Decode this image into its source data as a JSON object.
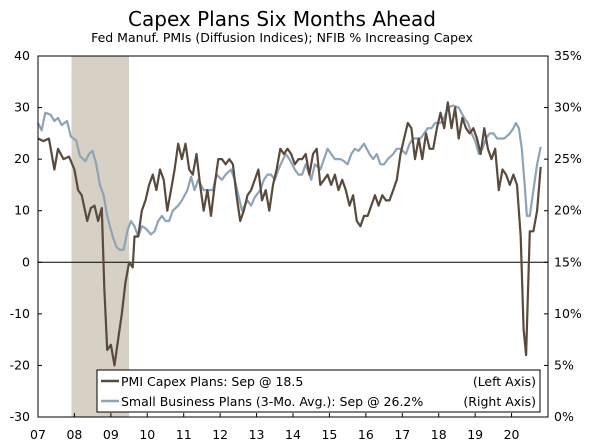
{
  "chart_data": {
    "type": "line",
    "title": "Capex Plans Six Months Ahead",
    "subtitle": "Fed Manuf. PMIs (Diffusion Indices); NFIB % Increasing Capex",
    "x_ticks": [
      "07",
      "08",
      "09",
      "10",
      "11",
      "12",
      "13",
      "14",
      "15",
      "16",
      "17",
      "18",
      "19",
      "20"
    ],
    "xlim": [
      2007.0,
      2021.0
    ],
    "left_axis": {
      "ylim": [
        -30,
        40
      ],
      "ticks": [
        "40",
        "30",
        "20",
        "10",
        "0",
        "-10",
        "-20",
        "-30"
      ]
    },
    "right_axis": {
      "ylim": [
        0,
        35
      ],
      "ticks": [
        "35%",
        "30%",
        "25%",
        "20%",
        "15%",
        "10%",
        "5%",
        "0%"
      ]
    },
    "recession": {
      "start": 2007.92,
      "end": 2009.5
    },
    "legend": {
      "placement": "bottom-center"
    },
    "series": [
      {
        "name": "PMI Capex Plans: Sep @ 18.5",
        "legend_suffix": "(Left Axis)",
        "axis": "left",
        "color": "#594a3c",
        "points": [
          [
            2007.0,
            24
          ],
          [
            2007.15,
            23.5
          ],
          [
            2007.3,
            24
          ],
          [
            2007.45,
            18
          ],
          [
            2007.55,
            22
          ],
          [
            2007.7,
            20
          ],
          [
            2007.85,
            20.5
          ],
          [
            2008.0,
            18
          ],
          [
            2008.1,
            14
          ],
          [
            2008.2,
            13
          ],
          [
            2008.35,
            8
          ],
          [
            2008.45,
            10.5
          ],
          [
            2008.55,
            11
          ],
          [
            2008.65,
            8
          ],
          [
            2008.75,
            10.5
          ],
          [
            2008.82,
            -5
          ],
          [
            2008.9,
            -17
          ],
          [
            2009.0,
            -16
          ],
          [
            2009.1,
            -20
          ],
          [
            2009.2,
            -15
          ],
          [
            2009.3,
            -10
          ],
          [
            2009.4,
            -4
          ],
          [
            2009.5,
            0
          ],
          [
            2009.6,
            -1
          ],
          [
            2009.65,
            5
          ],
          [
            2009.75,
            5
          ],
          [
            2009.85,
            10
          ],
          [
            2009.95,
            12
          ],
          [
            2010.05,
            15
          ],
          [
            2010.15,
            17
          ],
          [
            2010.25,
            14
          ],
          [
            2010.35,
            18
          ],
          [
            2010.45,
            16
          ],
          [
            2010.55,
            10
          ],
          [
            2010.65,
            14
          ],
          [
            2010.75,
            18
          ],
          [
            2010.85,
            23
          ],
          [
            2010.95,
            20
          ],
          [
            2011.05,
            23
          ],
          [
            2011.15,
            18
          ],
          [
            2011.25,
            17
          ],
          [
            2011.35,
            21
          ],
          [
            2011.45,
            15
          ],
          [
            2011.55,
            10
          ],
          [
            2011.65,
            14
          ],
          [
            2011.75,
            9
          ],
          [
            2011.85,
            15
          ],
          [
            2011.95,
            20
          ],
          [
            2012.05,
            20
          ],
          [
            2012.15,
            19
          ],
          [
            2012.25,
            20
          ],
          [
            2012.35,
            19
          ],
          [
            2012.45,
            13
          ],
          [
            2012.55,
            8
          ],
          [
            2012.65,
            10
          ],
          [
            2012.75,
            13
          ],
          [
            2012.85,
            14
          ],
          [
            2012.95,
            16
          ],
          [
            2013.05,
            18
          ],
          [
            2013.15,
            12
          ],
          [
            2013.25,
            14
          ],
          [
            2013.35,
            10
          ],
          [
            2013.45,
            15
          ],
          [
            2013.55,
            18
          ],
          [
            2013.65,
            22
          ],
          [
            2013.75,
            21
          ],
          [
            2013.85,
            22
          ],
          [
            2013.95,
            21
          ],
          [
            2014.05,
            19
          ],
          [
            2014.15,
            20
          ],
          [
            2014.25,
            20
          ],
          [
            2014.35,
            21
          ],
          [
            2014.45,
            17
          ],
          [
            2014.55,
            21
          ],
          [
            2014.65,
            22
          ],
          [
            2014.75,
            15
          ],
          [
            2014.85,
            16
          ],
          [
            2014.95,
            17
          ],
          [
            2015.05,
            15
          ],
          [
            2015.15,
            17
          ],
          [
            2015.25,
            14
          ],
          [
            2015.35,
            16
          ],
          [
            2015.45,
            14
          ],
          [
            2015.55,
            11
          ],
          [
            2015.65,
            13
          ],
          [
            2015.75,
            8
          ],
          [
            2015.85,
            7
          ],
          [
            2015.95,
            9
          ],
          [
            2016.05,
            9
          ],
          [
            2016.15,
            11
          ],
          [
            2016.25,
            13
          ],
          [
            2016.35,
            11
          ],
          [
            2016.45,
            13
          ],
          [
            2016.55,
            12
          ],
          [
            2016.65,
            12
          ],
          [
            2016.75,
            14
          ],
          [
            2016.85,
            16
          ],
          [
            2016.95,
            21
          ],
          [
            2017.05,
            24
          ],
          [
            2017.15,
            27
          ],
          [
            2017.25,
            26
          ],
          [
            2017.35,
            20
          ],
          [
            2017.45,
            24
          ],
          [
            2017.55,
            20
          ],
          [
            2017.65,
            25
          ],
          [
            2017.75,
            22
          ],
          [
            2017.85,
            22
          ],
          [
            2017.95,
            26
          ],
          [
            2018.05,
            29
          ],
          [
            2018.15,
            26
          ],
          [
            2018.25,
            31
          ],
          [
            2018.35,
            26
          ],
          [
            2018.45,
            30
          ],
          [
            2018.55,
            24
          ],
          [
            2018.65,
            28
          ],
          [
            2018.75,
            26
          ],
          [
            2018.85,
            25
          ],
          [
            2018.95,
            26
          ],
          [
            2019.05,
            24
          ],
          [
            2019.15,
            21
          ],
          [
            2019.25,
            26
          ],
          [
            2019.35,
            22
          ],
          [
            2019.45,
            20
          ],
          [
            2019.55,
            22
          ],
          [
            2019.65,
            14
          ],
          [
            2019.75,
            18
          ],
          [
            2019.85,
            17
          ],
          [
            2019.95,
            15
          ],
          [
            2020.05,
            17
          ],
          [
            2020.15,
            15
          ],
          [
            2020.25,
            5
          ],
          [
            2020.33,
            -13
          ],
          [
            2020.4,
            -18
          ],
          [
            2020.5,
            6
          ],
          [
            2020.6,
            6
          ],
          [
            2020.7,
            10
          ],
          [
            2020.8,
            18.5
          ]
        ]
      },
      {
        "name": "Small Business Plans (3-Mo. Avg.): Sep @ 26.2%",
        "legend_suffix": "(Right Axis)",
        "axis": "right",
        "color": "#8fa3b6",
        "points": [
          [
            2007.0,
            28.5
          ],
          [
            2007.1,
            27.8
          ],
          [
            2007.2,
            29.5
          ],
          [
            2007.35,
            29.3
          ],
          [
            2007.45,
            28.7
          ],
          [
            2007.55,
            29
          ],
          [
            2007.65,
            28.3
          ],
          [
            2007.8,
            28.7
          ],
          [
            2007.9,
            27.2
          ],
          [
            2008.05,
            26.8
          ],
          [
            2008.15,
            25.3
          ],
          [
            2008.3,
            24.8
          ],
          [
            2008.4,
            25.5
          ],
          [
            2008.5,
            25.8
          ],
          [
            2008.6,
            24.5
          ],
          [
            2008.7,
            22.5
          ],
          [
            2008.8,
            21.5
          ],
          [
            2008.9,
            19.5
          ],
          [
            2009.05,
            17.5
          ],
          [
            2009.15,
            16.5
          ],
          [
            2009.25,
            16.2
          ],
          [
            2009.35,
            16.2
          ],
          [
            2009.45,
            18
          ],
          [
            2009.55,
            19
          ],
          [
            2009.65,
            18.5
          ],
          [
            2009.75,
            17.5
          ],
          [
            2009.85,
            18.5
          ],
          [
            2009.95,
            18.3
          ],
          [
            2010.1,
            17.7
          ],
          [
            2010.2,
            18
          ],
          [
            2010.3,
            19
          ],
          [
            2010.4,
            19.5
          ],
          [
            2010.5,
            19
          ],
          [
            2010.6,
            19
          ],
          [
            2010.7,
            20
          ],
          [
            2010.85,
            20.5
          ],
          [
            2010.95,
            21
          ],
          [
            2011.1,
            22
          ],
          [
            2011.2,
            23.3
          ],
          [
            2011.3,
            22
          ],
          [
            2011.4,
            23
          ],
          [
            2011.55,
            22
          ],
          [
            2011.65,
            22
          ],
          [
            2011.8,
            22
          ],
          [
            2011.9,
            23.5
          ],
          [
            2012.05,
            23
          ],
          [
            2012.15,
            23.5
          ],
          [
            2012.3,
            24
          ],
          [
            2012.4,
            23
          ],
          [
            2012.5,
            21.5
          ],
          [
            2012.6,
            20
          ],
          [
            2012.75,
            21
          ],
          [
            2012.85,
            20.5
          ],
          [
            2012.95,
            21.3
          ],
          [
            2013.1,
            22
          ],
          [
            2013.2,
            23
          ],
          [
            2013.3,
            23.5
          ],
          [
            2013.4,
            23.5
          ],
          [
            2013.5,
            23
          ],
          [
            2013.6,
            24
          ],
          [
            2013.7,
            24.8
          ],
          [
            2013.8,
            25.5
          ],
          [
            2013.9,
            25
          ],
          [
            2014.05,
            24
          ],
          [
            2014.15,
            23.5
          ],
          [
            2014.25,
            23.5
          ],
          [
            2014.35,
            24.5
          ],
          [
            2014.5,
            23
          ],
          [
            2014.6,
            24.5
          ],
          [
            2014.75,
            24
          ],
          [
            2014.85,
            25
          ],
          [
            2014.95,
            26
          ],
          [
            2015.05,
            25.5
          ],
          [
            2015.15,
            25
          ],
          [
            2015.3,
            25
          ],
          [
            2015.4,
            24.8
          ],
          [
            2015.5,
            24.5
          ],
          [
            2015.6,
            25.5
          ],
          [
            2015.7,
            26
          ],
          [
            2015.8,
            25.8
          ],
          [
            2015.95,
            26.5
          ],
          [
            2016.1,
            25.5
          ],
          [
            2016.2,
            25
          ],
          [
            2016.3,
            25.5
          ],
          [
            2016.4,
            24.5
          ],
          [
            2016.5,
            24.5
          ],
          [
            2016.6,
            25
          ],
          [
            2016.75,
            25.5
          ],
          [
            2016.85,
            26
          ],
          [
            2016.95,
            26
          ],
          [
            2017.1,
            25.5
          ],
          [
            2017.2,
            26.5
          ],
          [
            2017.3,
            27
          ],
          [
            2017.4,
            27
          ],
          [
            2017.5,
            27
          ],
          [
            2017.6,
            27.5
          ],
          [
            2017.7,
            28
          ],
          [
            2017.8,
            28
          ],
          [
            2017.9,
            28.5
          ],
          [
            2018.05,
            28.5
          ],
          [
            2018.15,
            29
          ],
          [
            2018.25,
            30
          ],
          [
            2018.4,
            30.2
          ],
          [
            2018.55,
            30
          ],
          [
            2018.7,
            29
          ],
          [
            2018.8,
            28.5
          ],
          [
            2018.9,
            27.5
          ],
          [
            2019.0,
            26.8
          ],
          [
            2019.1,
            25.5
          ],
          [
            2019.2,
            26
          ],
          [
            2019.3,
            27
          ],
          [
            2019.4,
            27.5
          ],
          [
            2019.5,
            27.5
          ],
          [
            2019.6,
            27
          ],
          [
            2019.7,
            27
          ],
          [
            2019.8,
            27
          ],
          [
            2019.95,
            27.5
          ],
          [
            2020.05,
            28
          ],
          [
            2020.12,
            28.5
          ],
          [
            2020.2,
            28
          ],
          [
            2020.28,
            26
          ],
          [
            2020.35,
            23
          ],
          [
            2020.42,
            19.5
          ],
          [
            2020.5,
            19.5
          ],
          [
            2020.6,
            22
          ],
          [
            2020.7,
            24.5
          ],
          [
            2020.8,
            26.2
          ]
        ]
      }
    ]
  }
}
